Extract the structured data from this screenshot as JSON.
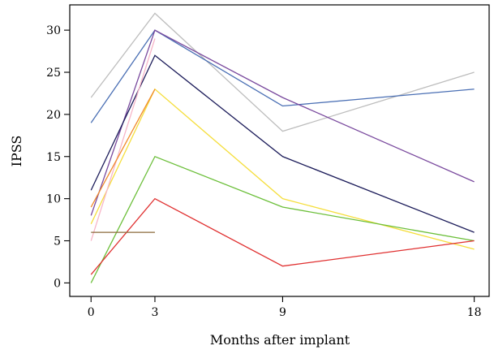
{
  "chart_data": {
    "type": "line",
    "title": "",
    "xlabel": "Months after implant",
    "ylabel": "IPSS",
    "x_ticks": [
      0,
      3,
      9,
      18
    ],
    "y_ticks": [
      0,
      5,
      10,
      15,
      20,
      25,
      30
    ],
    "xlim": [
      -1,
      18.7
    ],
    "ylim": [
      -1.6,
      33
    ],
    "grid": false,
    "legend": "none",
    "series": [
      {
        "color": "#bdbdbd",
        "x": [
          0,
          3,
          9,
          18
        ],
        "y": [
          22,
          32,
          18,
          25
        ]
      },
      {
        "color": "#4a6fb4",
        "x": [
          0,
          3,
          9,
          18
        ],
        "y": [
          19,
          30,
          21,
          23
        ]
      },
      {
        "color": "#7a4a9e",
        "x": [
          0,
          3,
          9,
          18
        ],
        "y": [
          8,
          30,
          22,
          12
        ]
      },
      {
        "color": "#1c1c5a",
        "x": [
          0,
          3,
          9,
          18
        ],
        "y": [
          11,
          27,
          15,
          6
        ]
      },
      {
        "color": "#f5de3c",
        "x": [
          0,
          3,
          9,
          18
        ],
        "y": [
          7,
          23,
          10,
          4
        ]
      },
      {
        "color": "#f7b6c8",
        "x": [
          0,
          3
        ],
        "y": [
          5,
          29
        ]
      },
      {
        "color": "#f08a2c",
        "x": [
          0,
          3
        ],
        "y": [
          9,
          23
        ]
      },
      {
        "color": "#6cbf3a",
        "x": [
          0,
          3,
          9,
          18
        ],
        "y": [
          0,
          15,
          9,
          5
        ]
      },
      {
        "color": "#e03030",
        "x": [
          0,
          3,
          9,
          18
        ],
        "y": [
          1,
          10,
          2,
          5
        ]
      },
      {
        "color": "#8b6a3a",
        "x": [
          0,
          3
        ],
        "y": [
          6,
          6
        ]
      }
    ]
  }
}
